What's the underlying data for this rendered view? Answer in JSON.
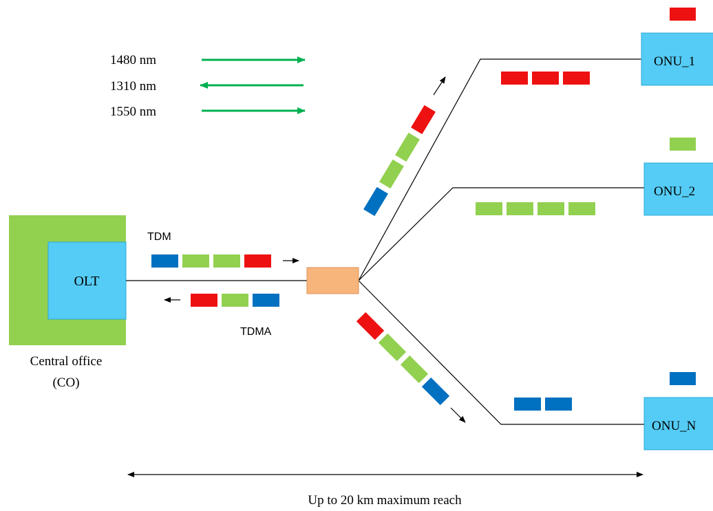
{
  "wavelengths": [
    "1480 nm",
    "1310 nm",
    "1550 nm"
  ],
  "labels": {
    "tdm": "TDM",
    "tdma": "TDMA",
    "olt": "OLT",
    "co_line1": "Central office",
    "co_line2": "(CO)",
    "reach": "Up to 20 km maximum reach"
  },
  "onus": [
    "ONU_1",
    "ONU_2",
    "ONU_N"
  ],
  "colors": {
    "red": "#ee1111",
    "green": "#92d050",
    "blue": "#0070c0",
    "onu_fill": "#55ccf5",
    "co_fill": "#92d050",
    "splitter": "#f7b57c",
    "arrow_green": "#00b050",
    "line": "#000000"
  }
}
